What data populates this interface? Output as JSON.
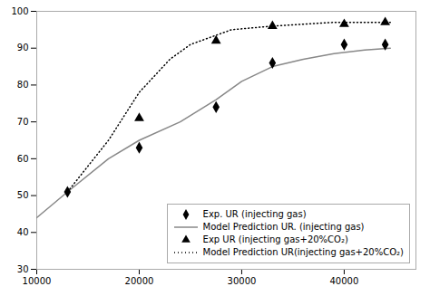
{
  "chart_data": {
    "type": "line",
    "xlim": [
      10000,
      47000
    ],
    "xticks": [
      10000,
      20000,
      30000,
      40000
    ],
    "ylim": [
      30,
      100
    ],
    "yticks": [
      30,
      40,
      50,
      60,
      70,
      80,
      90,
      100
    ],
    "grid": false,
    "legend": "lower right",
    "series": [
      {
        "name": "Exp. UR (injecting gas)",
        "type": "scatter",
        "marker": "diamond",
        "color": "#000000",
        "x": [
          13000,
          20000,
          27500,
          33000,
          40000,
          44000
        ],
        "values": [
          51,
          63,
          74,
          86,
          91,
          91
        ]
      },
      {
        "name": "Model Prediction UR. (injecting gas)",
        "type": "line",
        "line_style": "solid",
        "color": "#888888",
        "x": [
          10000,
          13000,
          17000,
          20000,
          24000,
          27500,
          30000,
          33000,
          36000,
          39000,
          42000,
          44500
        ],
        "values": [
          44,
          51,
          60,
          65,
          70,
          76,
          81,
          85,
          87,
          88.5,
          89.5,
          90
        ]
      },
      {
        "name": "Exp UR (injecting gas+20%CO₂)",
        "type": "scatter",
        "marker": "triangle",
        "color": "#000000",
        "x": [
          20000,
          27500,
          33000,
          40000,
          44000
        ],
        "values": [
          71,
          92,
          96,
          96.5,
          97
        ]
      },
      {
        "name": "Model Prediction UR(injecting gas+20%CO₂)",
        "type": "line",
        "line_style": "dotted",
        "color": "#000000",
        "x": [
          13000,
          17000,
          20000,
          23000,
          25000,
          27000,
          29000,
          31000,
          33000,
          36000,
          39000,
          42000,
          44500
        ],
        "values": [
          51,
          65,
          78,
          87,
          91,
          93,
          95,
          95.5,
          96,
          96.5,
          97,
          97,
          97
        ]
      }
    ]
  }
}
